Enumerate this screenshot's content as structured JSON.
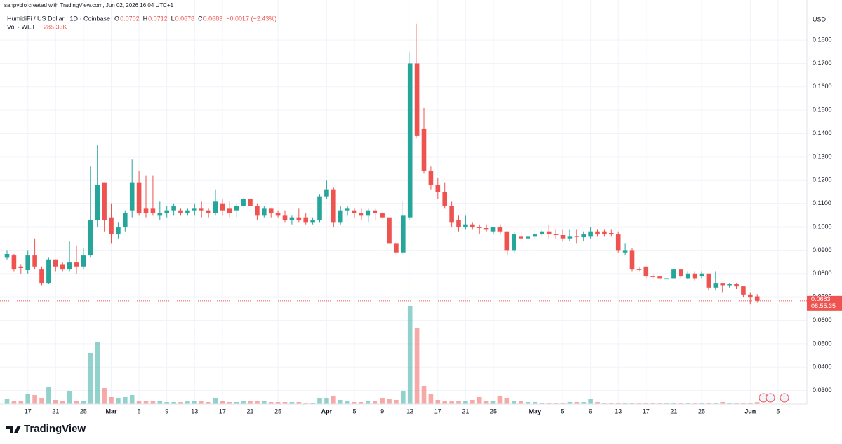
{
  "chart_data": {
    "type": "candlestick",
    "attribution": "sanpvblo created with TradingView.com, Jun 02, 2026 16:04 UTC+1",
    "title": "HumidiFi / US Dollar · 1D · Coinbase",
    "ohlc_labels": [
      "O",
      "H",
      "L",
      "C"
    ],
    "change_label": "−0.0017 (−2.43%)",
    "y_unit": "USD",
    "countdown": "08:55:35",
    "brand": "TradingView",
    "up_color": "#26a69a",
    "down_color": "#ef5350",
    "grid": true,
    "open": [
      0.087,
      0.088,
      0.083,
      0.0815,
      0.088,
      0.082,
      0.076,
      0.086,
      0.084,
      0.082,
      0.085,
      0.083,
      0.088,
      0.103,
      0.119,
      0.104,
      0.097,
      0.1,
      0.107,
      0.119,
      0.108,
      0.108,
      0.105,
      0.106,
      0.107,
      0.107,
      0.106,
      0.107,
      0.108,
      0.107,
      0.106,
      0.11,
      0.108,
      0.107,
      0.109,
      0.112,
      0.109,
      0.105,
      0.108,
      0.106,
      0.105,
      0.103,
      0.104,
      0.104,
      0.102,
      0.103,
      0.113,
      0.116,
      0.102,
      0.107,
      0.107,
      0.106,
      0.105,
      0.107,
      0.106,
      0.104,
      0.093,
      0.089,
      0.104,
      0.17,
      0.142,
      0.124,
      0.118,
      0.115,
      0.109,
      0.103,
      0.1,
      0.101,
      0.1,
      0.0995,
      0.098,
      0.1,
      0.098,
      0.09,
      0.096,
      0.095,
      0.096,
      0.097,
      0.098,
      0.097,
      0.0965,
      0.095,
      0.096,
      0.0955,
      0.096,
      0.098,
      0.098,
      0.0975,
      0.097,
      0.089,
      0.09,
      0.082,
      0.083,
      0.079,
      0.079,
      0.0775,
      0.078,
      0.082,
      0.078,
      0.08,
      0.079,
      0.08,
      0.074,
      0.076,
      0.075,
      0.0755,
      0.0745,
      0.071,
      0.0702
    ],
    "high": [
      0.09,
      0.0885,
      0.084,
      0.09,
      0.095,
      0.083,
      0.087,
      0.086,
      0.085,
      0.094,
      0.092,
      0.091,
      0.126,
      0.135,
      0.119,
      0.11,
      0.102,
      0.107,
      0.129,
      0.124,
      0.122,
      0.122,
      0.111,
      0.109,
      0.11,
      0.108,
      0.108,
      0.11,
      0.111,
      0.108,
      0.116,
      0.112,
      0.111,
      0.11,
      0.113,
      0.113,
      0.11,
      0.109,
      0.108,
      0.107,
      0.107,
      0.105,
      0.108,
      0.106,
      0.104,
      0.114,
      0.12,
      0.117,
      0.109,
      0.109,
      0.108,
      0.108,
      0.108,
      0.108,
      0.107,
      0.105,
      0.094,
      0.111,
      0.175,
      0.187,
      0.151,
      0.126,
      0.121,
      0.119,
      0.111,
      0.105,
      0.105,
      0.102,
      0.101,
      0.101,
      0.1,
      0.101,
      0.098,
      0.098,
      0.098,
      0.098,
      0.099,
      0.099,
      0.101,
      0.099,
      0.099,
      0.099,
      0.099,
      0.098,
      0.1,
      0.099,
      0.099,
      0.099,
      0.098,
      0.093,
      0.091,
      0.083,
      0.083,
      0.08,
      0.079,
      0.0785,
      0.0825,
      0.082,
      0.081,
      0.081,
      0.081,
      0.08,
      0.081,
      0.076,
      0.076,
      0.076,
      0.0745,
      0.072,
      0.0712
    ],
    "low": [
      0.086,
      0.081,
      0.08,
      0.08,
      0.082,
      0.075,
      0.0755,
      0.081,
      0.081,
      0.081,
      0.08,
      0.082,
      0.087,
      0.1,
      0.098,
      0.093,
      0.095,
      0.098,
      0.104,
      0.105,
      0.104,
      0.105,
      0.103,
      0.104,
      0.105,
      0.105,
      0.105,
      0.105,
      0.104,
      0.104,
      0.105,
      0.105,
      0.104,
      0.104,
      0.108,
      0.108,
      0.103,
      0.104,
      0.104,
      0.104,
      0.102,
      0.101,
      0.102,
      0.101,
      0.101,
      0.102,
      0.112,
      0.1,
      0.101,
      0.105,
      0.104,
      0.103,
      0.102,
      0.103,
      0.103,
      0.09,
      0.088,
      0.088,
      0.103,
      0.138,
      0.123,
      0.116,
      0.112,
      0.108,
      0.1,
      0.098,
      0.099,
      0.099,
      0.097,
      0.098,
      0.097,
      0.097,
      0.088,
      0.089,
      0.094,
      0.093,
      0.095,
      0.096,
      0.095,
      0.095,
      0.094,
      0.094,
      0.093,
      0.094,
      0.095,
      0.096,
      0.096,
      0.096,
      0.089,
      0.088,
      0.081,
      0.081,
      0.078,
      0.078,
      0.077,
      0.077,
      0.0775,
      0.078,
      0.0775,
      0.077,
      0.078,
      0.073,
      0.073,
      0.072,
      0.074,
      0.0735,
      0.07,
      0.067,
      0.0678
    ],
    "close": [
      0.0885,
      0.082,
      0.0825,
      0.088,
      0.083,
      0.076,
      0.086,
      0.083,
      0.082,
      0.085,
      0.083,
      0.088,
      0.103,
      0.118,
      0.103,
      0.097,
      0.1,
      0.106,
      0.119,
      0.106,
      0.106,
      0.106,
      0.106,
      0.107,
      0.109,
      0.106,
      0.107,
      0.108,
      0.107,
      0.106,
      0.111,
      0.107,
      0.106,
      0.109,
      0.112,
      0.109,
      0.105,
      0.108,
      0.106,
      0.105,
      0.103,
      0.104,
      0.103,
      0.102,
      0.103,
      0.113,
      0.116,
      0.102,
      0.107,
      0.108,
      0.106,
      0.105,
      0.107,
      0.106,
      0.104,
      0.093,
      0.089,
      0.105,
      0.17,
      0.139,
      0.124,
      0.118,
      0.115,
      0.109,
      0.102,
      0.1,
      0.101,
      0.1,
      0.0995,
      0.099,
      0.1,
      0.098,
      0.09,
      0.097,
      0.095,
      0.096,
      0.097,
      0.098,
      0.097,
      0.0965,
      0.095,
      0.096,
      0.0955,
      0.097,
      0.098,
      0.097,
      0.097,
      0.097,
      0.09,
      0.09,
      0.082,
      0.0815,
      0.079,
      0.0785,
      0.078,
      0.078,
      0.082,
      0.079,
      0.08,
      0.078,
      0.08,
      0.074,
      0.076,
      0.075,
      0.0755,
      0.0745,
      0.071,
      0.07,
      0.0683
    ],
    "volume": {
      "name": "Vol · WET",
      "last_value_label": "285.33K",
      "values": [
        700,
        500,
        400,
        1500,
        1300,
        800,
        2500,
        600,
        500,
        1800,
        500,
        400,
        7300,
        8900,
        2300,
        1000,
        800,
        1000,
        1300,
        500,
        400,
        400,
        500,
        300,
        300,
        300,
        400,
        500,
        400,
        300,
        800,
        400,
        300,
        300,
        400,
        400,
        500,
        400,
        300,
        300,
        300,
        300,
        300,
        200,
        200,
        800,
        800,
        1100,
        600,
        400,
        300,
        300,
        400,
        500,
        800,
        700,
        600,
        1800,
        14000,
        10800,
        2600,
        1400,
        600,
        500,
        400,
        400,
        400,
        600,
        1000,
        400,
        500,
        1200,
        900,
        500,
        400,
        300,
        300,
        200,
        200,
        200,
        200,
        300,
        300,
        300,
        700,
        300,
        200,
        200,
        200,
        100,
        100,
        100,
        100,
        100,
        100,
        100,
        100,
        100,
        100,
        100,
        100,
        200,
        200,
        300,
        200,
        200,
        200,
        200,
        285.33
      ]
    },
    "vol_ylim": [
      0,
      57700
    ],
    "ylim": [
      0.0242,
      0.1971
    ],
    "yticks": [
      {
        "value": 0.03,
        "label": "0.0300"
      },
      {
        "value": 0.04,
        "label": "0.0400"
      },
      {
        "value": 0.05,
        "label": "0.0500"
      },
      {
        "value": 0.06,
        "label": "0.0600"
      },
      {
        "value": 0.07,
        "label": "0.0700"
      },
      {
        "value": 0.08,
        "label": "0.0800"
      },
      {
        "value": 0.09,
        "label": "0.0900"
      },
      {
        "value": 0.1,
        "label": "0.1000"
      },
      {
        "value": 0.11,
        "label": "0.1100"
      },
      {
        "value": 0.12,
        "label": "0.1200"
      },
      {
        "value": 0.13,
        "label": "0.1300"
      },
      {
        "value": 0.14,
        "label": "0.1400"
      },
      {
        "value": 0.15,
        "label": "0.1500"
      },
      {
        "value": 0.16,
        "label": "0.1600"
      },
      {
        "value": 0.17,
        "label": "0.1700"
      },
      {
        "value": 0.18,
        "label": "0.1800"
      }
    ],
    "xlim": [
      -1.01,
      115.15
    ],
    "xticks": [
      {
        "value": 3,
        "label": "17"
      },
      {
        "value": 7,
        "label": "21"
      },
      {
        "value": 11,
        "label": "25"
      },
      {
        "value": 15,
        "label": "Mar"
      },
      {
        "value": 19,
        "label": "5"
      },
      {
        "value": 23,
        "label": "9"
      },
      {
        "value": 27,
        "label": "13"
      },
      {
        "value": 31,
        "label": "17"
      },
      {
        "value": 35,
        "label": "21"
      },
      {
        "value": 39,
        "label": "25"
      },
      {
        "value": 46,
        "label": "Apr"
      },
      {
        "value": 50,
        "label": "5"
      },
      {
        "value": 54,
        "label": "9"
      },
      {
        "value": 58,
        "label": "13"
      },
      {
        "value": 62,
        "label": "17"
      },
      {
        "value": 66,
        "label": "21"
      },
      {
        "value": 70,
        "label": "25"
      },
      {
        "value": 76,
        "label": "May"
      },
      {
        "value": 80,
        "label": "5"
      },
      {
        "value": 84,
        "label": "9"
      },
      {
        "value": 88,
        "label": "13"
      },
      {
        "value": 92,
        "label": "17"
      },
      {
        "value": 96,
        "label": "21"
      },
      {
        "value": 100,
        "label": "25"
      },
      {
        "value": 107,
        "label": "Jun"
      },
      {
        "value": 111,
        "label": "5"
      }
    ]
  }
}
